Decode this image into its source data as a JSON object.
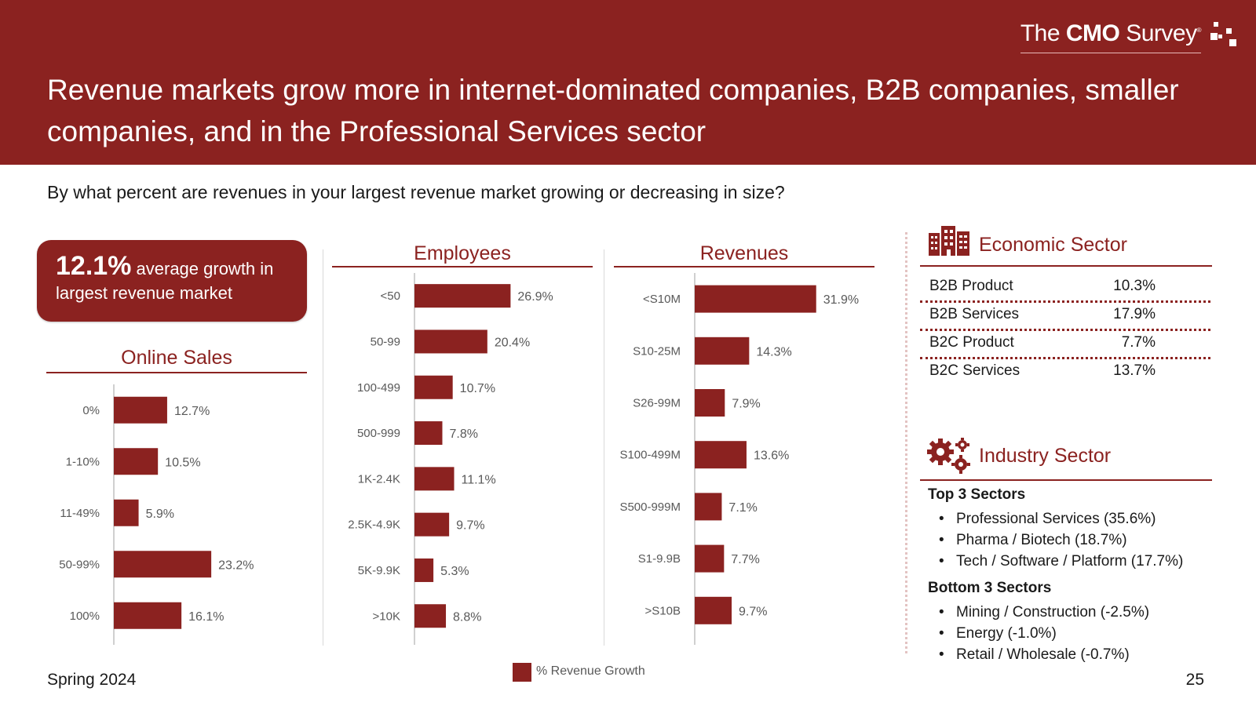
{
  "logo": {
    "text_light": "The ",
    "text_bold": "CMO",
    "text_light2": " Survey",
    "registered": "®"
  },
  "title": "Revenue markets grow more in internet-dominated companies, B2B companies, smaller companies, and in the Professional Services sector",
  "question": "By what percent are revenues in your largest revenue market growing or decreasing in size?",
  "callout": {
    "value": "12.1%",
    "text_inline": " average growth in",
    "text_line2": "largest revenue market"
  },
  "colors": {
    "brand": "#8b2220",
    "label": "#595959"
  },
  "chart_data": [
    {
      "type": "bar",
      "orientation": "horizontal",
      "title": "Online Sales",
      "categories": [
        "0%",
        "1-10%",
        "11-49%",
        "50-99%",
        "100%"
      ],
      "values": [
        12.7,
        10.5,
        5.9,
        23.2,
        16.1
      ],
      "labels": [
        "12.7%",
        "10.5%",
        "5.9%",
        "23.2%",
        "16.1%"
      ],
      "xlim": [
        0,
        40
      ]
    },
    {
      "type": "bar",
      "orientation": "horizontal",
      "title": "Employees",
      "categories": [
        "<50",
        "50-99",
        "100-499",
        "500-999",
        "1K-2.4K",
        "2.5K-4.9K",
        "5K-9.9K",
        ">10K"
      ],
      "values": [
        26.9,
        20.4,
        10.7,
        7.8,
        11.1,
        9.7,
        5.3,
        8.8
      ],
      "labels": [
        "26.9%",
        "20.4%",
        "10.7%",
        "7.8%",
        "11.1%",
        "9.7%",
        "5.3%",
        "8.8%"
      ],
      "xlim": [
        0,
        40
      ]
    },
    {
      "type": "bar",
      "orientation": "horizontal",
      "title": "Revenues",
      "categories": [
        "<S10M",
        "S10-25M",
        "S26-99M",
        "S100-499M",
        "S500-999M",
        "S1-9.9B",
        ">S10B"
      ],
      "values": [
        31.9,
        14.3,
        7.9,
        13.6,
        7.1,
        7.7,
        9.7
      ],
      "labels": [
        "31.9%",
        "14.3%",
        "7.9%",
        "13.6%",
        "7.1%",
        "7.7%",
        "9.7%"
      ],
      "xlim": [
        0,
        40
      ]
    }
  ],
  "economic_sector": {
    "heading": "Economic Sector",
    "rows": [
      {
        "name": "B2B Product",
        "value": "10.3%"
      },
      {
        "name": "B2B Services",
        "value": "17.9%"
      },
      {
        "name": "B2C Product",
        "value": "7.7%"
      },
      {
        "name": "B2C Services",
        "value": "13.7%"
      }
    ]
  },
  "industry_sector": {
    "heading": "Industry Sector",
    "top_label": "Top 3 Sectors",
    "top": [
      "Professional Services (35.6%)",
      "Pharma / Biotech (18.7%)",
      "Tech / Software / Platform (17.7%)"
    ],
    "bottom_label": "Bottom 3 Sectors",
    "bottom": [
      "Mining / Construction (-2.5%)",
      "Energy (-1.0%)",
      "Retail / Wholesale (-0.7%)"
    ]
  },
  "legend": {
    "label": "% Revenue Growth"
  },
  "footer": {
    "left": "Spring 2024",
    "page": "25"
  },
  "icons": {
    "economic": "buildings-icon",
    "industry": "gears-icon"
  }
}
